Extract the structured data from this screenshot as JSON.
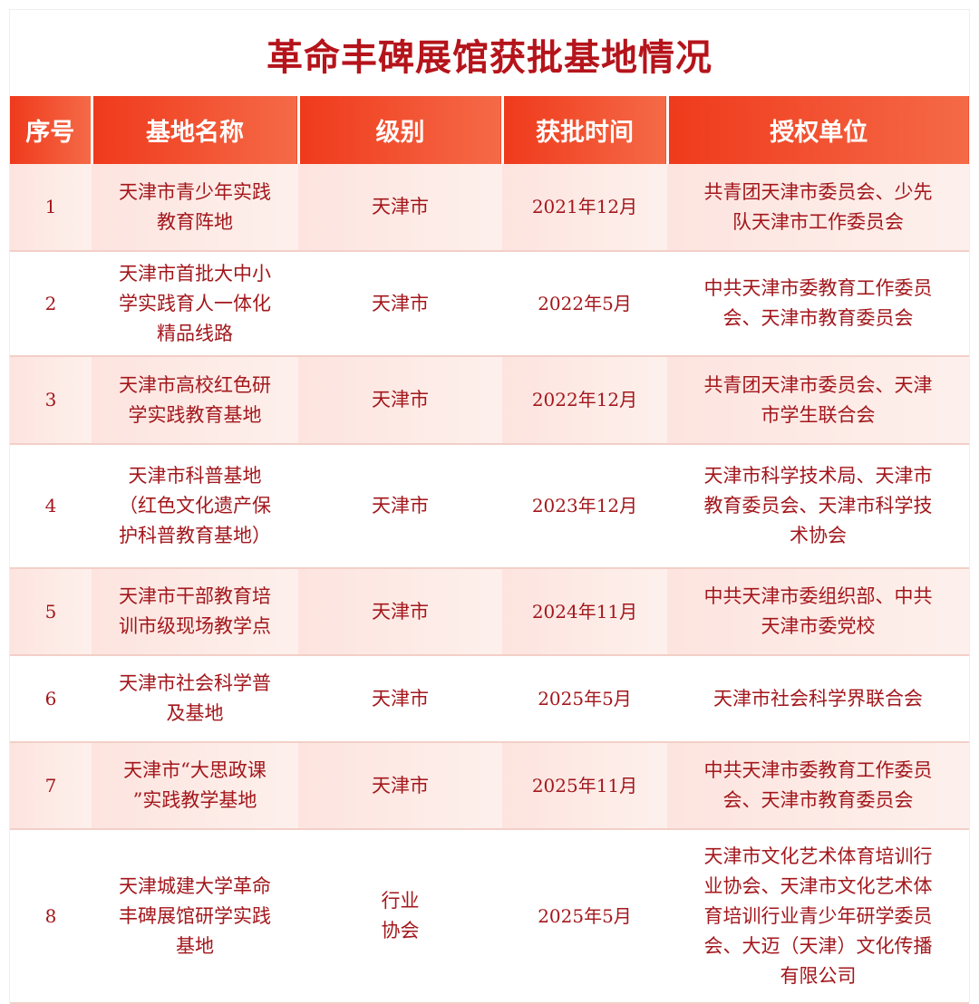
{
  "title": "革命丰碑展馆获批基地情况",
  "headers": [
    "序号",
    "基地名称",
    "级别",
    "获批时间",
    "授权单位"
  ],
  "rows": [
    {
      "no": "1",
      "name": "天津市青少年实践\n教育阵地",
      "level": "天津市",
      "date": "2021年12月",
      "authority": "共青团天津市委员会、少先\n队天津市工作委员会"
    },
    {
      "no": "2",
      "name": "天津市首批大中小\n学实践育人一体化\n精品线路",
      "level": "天津市",
      "date": "2022年5月",
      "authority": "中共天津市委教育工作委员\n会、天津市教育委员会"
    },
    {
      "no": "3",
      "name": "天津市高校红色研\n学实践教育基地",
      "level": "天津市",
      "date": "2022年12月",
      "authority": "共青团天津市委员会、天津\n市学生联合会"
    },
    {
      "no": "4",
      "name": "天津市科普基地\n（红色文化遗产保\n护科普教育基地）",
      "level": "天津市",
      "date": "2023年12月",
      "authority": "天津市科学技术局、天津市\n教育委员会、天津市科学技\n术协会"
    },
    {
      "no": "5",
      "name": "天津市干部教育培\n训市级现场教学点",
      "level": "天津市",
      "date": "2024年11月",
      "authority": "中共天津市委组织部、中共\n天津市委党校"
    },
    {
      "no": "6",
      "name": "天津市社会科学普\n及基地",
      "level": "天津市",
      "date": "2025年5月",
      "authority": "天津市社会科学界联合会"
    },
    {
      "no": "7",
      "name": "天津市“大思政课\n”实践教学基地",
      "level": "天津市",
      "date": "2025年11月",
      "authority": "中共天津市委教育工作委员\n会、天津市教育委员会"
    },
    {
      "no": "8",
      "name": "天津城建大学革命\n丰碑展馆研学实践\n基地",
      "level": "行业\n协会",
      "date": "2025年5月",
      "authority": "天津市文化艺术体育培训行\n业协会、天津市文化艺术体\n育培训行业青少年研学委员\n会、大迈（天津）文化传播\n有限公司"
    }
  ],
  "colors": {
    "title": "#b5141b",
    "header_bg": "#ef3a1c",
    "text": "#a3171c",
    "row_alt": "#fde4df"
  }
}
